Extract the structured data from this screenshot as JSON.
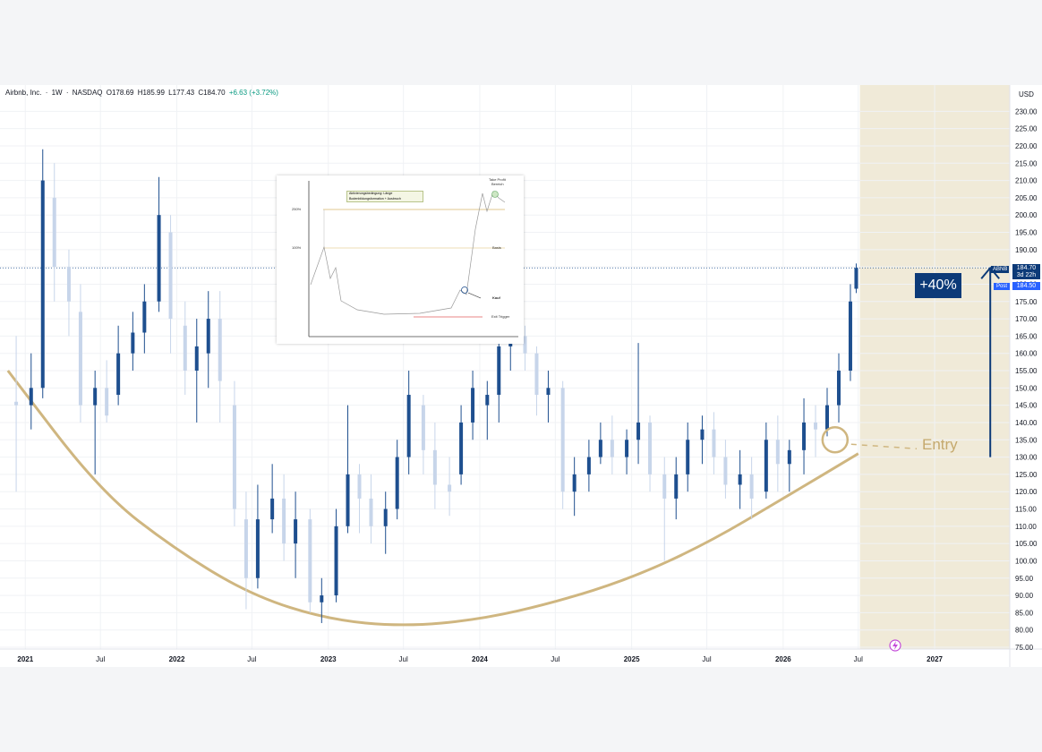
{
  "header": {
    "name": "Airbnb, Inc.",
    "interval": "1W",
    "exchange": "NASDAQ",
    "open": "O178.69",
    "high": "H185.99",
    "low": "L177.43",
    "close": "C184.70",
    "change": "+6.63 (+3.72%)"
  },
  "price_scale": {
    "unit": "USD",
    "last_symbol": "ABNB",
    "last_price": "184.70",
    "countdown": "3d 22h",
    "post_label": "Post",
    "post_price": "184.50"
  },
  "annotations": {
    "gain_badge": "+40%",
    "entry_label": "Entry"
  },
  "inset": {
    "tip_line1": "Aktivierungsbedingung: Länge",
    "tip_line2": "Bodenbildungsformation + Ausbruch",
    "level_250": "250%",
    "level_100": "100%",
    "take_profit_1": "Take Profit",
    "take_profit_2": "Bereich",
    "basis": "Basis",
    "kauf": "Kauf",
    "exit": "Exit Trigger"
  },
  "colors": {
    "up": "#1e4f8f",
    "down": "#c7d5ea",
    "curve": "#cfb680",
    "highlight": "#f0ead8",
    "badge": "#0c3a78"
  },
  "chart_data": {
    "type": "candlestick",
    "title": "Airbnb, Inc. · 1W · NASDAQ",
    "ylabel": "USD",
    "ylim": [
      75,
      235
    ],
    "y_ticks": [
      75,
      80,
      85,
      90,
      95,
      100,
      105,
      110,
      115,
      120,
      125,
      130,
      135,
      140,
      145,
      150,
      155,
      160,
      165,
      170,
      175,
      180,
      185,
      190,
      195,
      200,
      205,
      210,
      215,
      220,
      225,
      230
    ],
    "x_ticks": [
      {
        "label": "2021",
        "date": "2021-01-01"
      },
      {
        "label": "Jul",
        "date": "2021-07-01"
      },
      {
        "label": "2022",
        "date": "2022-01-01"
      },
      {
        "label": "Jul",
        "date": "2022-07-01"
      },
      {
        "label": "2023",
        "date": "2023-01-01"
      },
      {
        "label": "Jul",
        "date": "2023-07-01"
      },
      {
        "label": "2024",
        "date": "2024-01-01"
      },
      {
        "label": "Jul",
        "date": "2024-07-01"
      },
      {
        "label": "2025",
        "date": "2025-01-01"
      },
      {
        "label": "Jul",
        "date": "2025-07-01"
      },
      {
        "label": "2026",
        "date": "2026-01-01"
      },
      {
        "label": "Jul",
        "date": "2026-07-01"
      },
      {
        "label": "2027",
        "date": "2027-01-01"
      }
    ],
    "x_range": [
      "2020-11-01",
      "2027-07-01"
    ],
    "series": [
      {
        "candles": [
          [
            "2020-12-10",
            146,
            165,
            120,
            145
          ],
          [
            "2021-01-15",
            145,
            160,
            138,
            150
          ],
          [
            "2021-02-12",
            150,
            219,
            147,
            210
          ],
          [
            "2021-03-12",
            205,
            215,
            175,
            185
          ],
          [
            "2021-04-16",
            185,
            190,
            165,
            175
          ],
          [
            "2021-05-14",
            172,
            180,
            140,
            145
          ],
          [
            "2021-06-18",
            145,
            155,
            125,
            150
          ],
          [
            "2021-07-16",
            150,
            158,
            140,
            142
          ],
          [
            "2021-08-13",
            148,
            168,
            145,
            160
          ],
          [
            "2021-09-17",
            160,
            172,
            155,
            166
          ],
          [
            "2021-10-15",
            166,
            180,
            160,
            175
          ],
          [
            "2021-11-19",
            175,
            211,
            172,
            200
          ],
          [
            "2021-12-17",
            195,
            200,
            160,
            170
          ],
          [
            "2022-01-21",
            168,
            175,
            148,
            155
          ],
          [
            "2022-02-18",
            155,
            170,
            140,
            162
          ],
          [
            "2022-03-18",
            160,
            178,
            150,
            170
          ],
          [
            "2022-04-15",
            170,
            178,
            140,
            152
          ],
          [
            "2022-05-20",
            145,
            152,
            110,
            115
          ],
          [
            "2022-06-17",
            112,
            120,
            86,
            95
          ],
          [
            "2022-07-15",
            95,
            122,
            92,
            112
          ],
          [
            "2022-08-19",
            112,
            128,
            108,
            118
          ],
          [
            "2022-09-16",
            118,
            125,
            100,
            105
          ],
          [
            "2022-10-14",
            105,
            120,
            95,
            112
          ],
          [
            "2022-11-18",
            112,
            115,
            85,
            88
          ],
          [
            "2022-12-16",
            88,
            95,
            82,
            90
          ],
          [
            "2023-01-20",
            90,
            115,
            88,
            110
          ],
          [
            "2023-02-17",
            110,
            145,
            108,
            125
          ],
          [
            "2023-03-17",
            125,
            128,
            108,
            118
          ],
          [
            "2023-04-14",
            118,
            125,
            105,
            110
          ],
          [
            "2023-05-19",
            110,
            120,
            102,
            115
          ],
          [
            "2023-06-16",
            115,
            135,
            112,
            130
          ],
          [
            "2023-07-14",
            130,
            155,
            125,
            148
          ],
          [
            "2023-08-18",
            145,
            148,
            125,
            132
          ],
          [
            "2023-09-15",
            132,
            140,
            115,
            122
          ],
          [
            "2023-10-20",
            122,
            130,
            113,
            120
          ],
          [
            "2023-11-17",
            125,
            145,
            122,
            140
          ],
          [
            "2023-12-15",
            140,
            155,
            135,
            150
          ],
          [
            "2024-01-19",
            145,
            152,
            135,
            148
          ],
          [
            "2024-02-16",
            148,
            170,
            140,
            162
          ],
          [
            "2024-03-15",
            162,
            170,
            155,
            165
          ],
          [
            "2024-04-19",
            165,
            168,
            155,
            160
          ],
          [
            "2024-05-17",
            160,
            162,
            142,
            148
          ],
          [
            "2024-06-14",
            148,
            155,
            140,
            150
          ],
          [
            "2024-07-19",
            150,
            152,
            115,
            120
          ],
          [
            "2024-08-16",
            120,
            130,
            113,
            125
          ],
          [
            "2024-09-20",
            125,
            135,
            120,
            130
          ],
          [
            "2024-10-18",
            130,
            140,
            128,
            135
          ],
          [
            "2024-11-15",
            135,
            142,
            125,
            130
          ],
          [
            "2024-12-20",
            130,
            138,
            125,
            135
          ],
          [
            "2025-01-17",
            135,
            163,
            128,
            140
          ],
          [
            "2025-02-14",
            140,
            142,
            120,
            125
          ],
          [
            "2025-03-21",
            125,
            130,
            100,
            118
          ],
          [
            "2025-04-18",
            118,
            130,
            112,
            125
          ],
          [
            "2025-05-16",
            125,
            140,
            120,
            135
          ],
          [
            "2025-06-20",
            135,
            142,
            128,
            138
          ],
          [
            "2025-07-18",
            138,
            143,
            125,
            130
          ],
          [
            "2025-08-15",
            130,
            135,
            118,
            122
          ],
          [
            "2025-09-19",
            122,
            132,
            115,
            125
          ],
          [
            "2025-10-17",
            125,
            130,
            112,
            118
          ],
          [
            "2025-11-21",
            120,
            140,
            118,
            135
          ],
          [
            "2025-12-19",
            135,
            142,
            120,
            128
          ],
          [
            "2026-01-16",
            128,
            135,
            120,
            132
          ],
          [
            "2026-02-20",
            132,
            147,
            125,
            140
          ],
          [
            "2026-03-20",
            140,
            145,
            130,
            138
          ],
          [
            "2026-04-17",
            138,
            150,
            136,
            145
          ],
          [
            "2026-05-15",
            145,
            160,
            140,
            155
          ],
          [
            "2026-06-12",
            155,
            180,
            152,
            175
          ],
          [
            "2026-06-26",
            178.69,
            185.99,
            177.43,
            184.7
          ]
        ]
      }
    ],
    "last_price": 184.7,
    "post_price": 184.5,
    "price_line": 184.7,
    "highlight_range": [
      "2026-07-05",
      "2027-07-01"
    ],
    "cup_curve": [
      [
        "2020-11-20",
        155
      ],
      [
        "2021-07-01",
        120
      ],
      [
        "2022-01-01",
        103
      ],
      [
        "2022-07-01",
        90
      ],
      [
        "2023-01-01",
        83
      ],
      [
        "2023-07-01",
        81
      ],
      [
        "2024-01-01",
        83
      ],
      [
        "2024-07-01",
        88
      ],
      [
        "2025-01-01",
        95
      ],
      [
        "2025-07-01",
        105
      ],
      [
        "2026-01-01",
        118
      ],
      [
        "2026-07-01",
        131
      ]
    ],
    "entry_marker": {
      "date": "2026-05-06",
      "price": 135
    },
    "target_arrow": {
      "date": "2027-05-15",
      "from": 130,
      "to": 184.7
    }
  }
}
